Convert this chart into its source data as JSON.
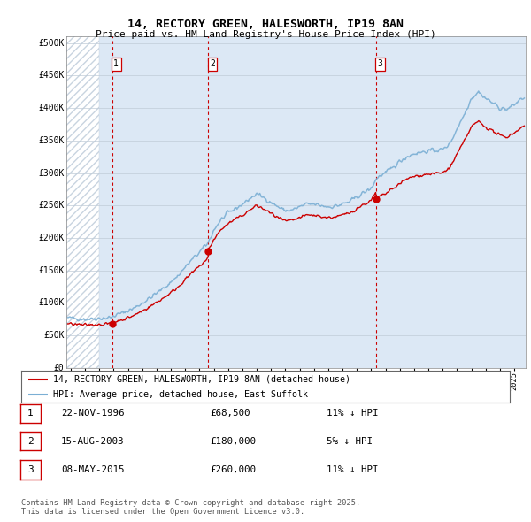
{
  "title1": "14, RECTORY GREEN, HALESWORTH, IP19 8AN",
  "title2": "Price paid vs. HM Land Registry's House Price Index (HPI)",
  "ylabel_ticks": [
    "£0",
    "£50K",
    "£100K",
    "£150K",
    "£200K",
    "£250K",
    "£300K",
    "£350K",
    "£400K",
    "£450K",
    "£500K"
  ],
  "ytick_values": [
    0,
    50000,
    100000,
    150000,
    200000,
    250000,
    300000,
    350000,
    400000,
    450000,
    500000
  ],
  "ylim": [
    0,
    510000
  ],
  "xlim_start": 1993.7,
  "xlim_end": 2025.8,
  "sale_dates": [
    1996.896,
    2003.617,
    2015.356
  ],
  "sale_prices": [
    68500,
    180000,
    260000
  ],
  "sale_labels": [
    "1",
    "2",
    "3"
  ],
  "sale_info": [
    {
      "label": "1",
      "date": "22-NOV-1996",
      "price": "£68,500",
      "pct": "11% ↓ HPI"
    },
    {
      "label": "2",
      "date": "15-AUG-2003",
      "price": "£180,000",
      "pct": "5% ↓ HPI"
    },
    {
      "label": "3",
      "date": "08-MAY-2015",
      "price": "£260,000",
      "pct": "11% ↓ HPI"
    }
  ],
  "legend_line1": "14, RECTORY GREEN, HALESWORTH, IP19 8AN (detached house)",
  "legend_line2": "HPI: Average price, detached house, East Suffolk",
  "footnote": "Contains HM Land Registry data © Crown copyright and database right 2025.\nThis data is licensed under the Open Government Licence v3.0.",
  "hpi_color": "#7bafd4",
  "sale_line_color": "#cc0000",
  "sale_dot_color": "#cc0000",
  "vline_color": "#cc0000",
  "plot_bg_color": "#dce8f5",
  "hatch_color": "#c8d4e0"
}
